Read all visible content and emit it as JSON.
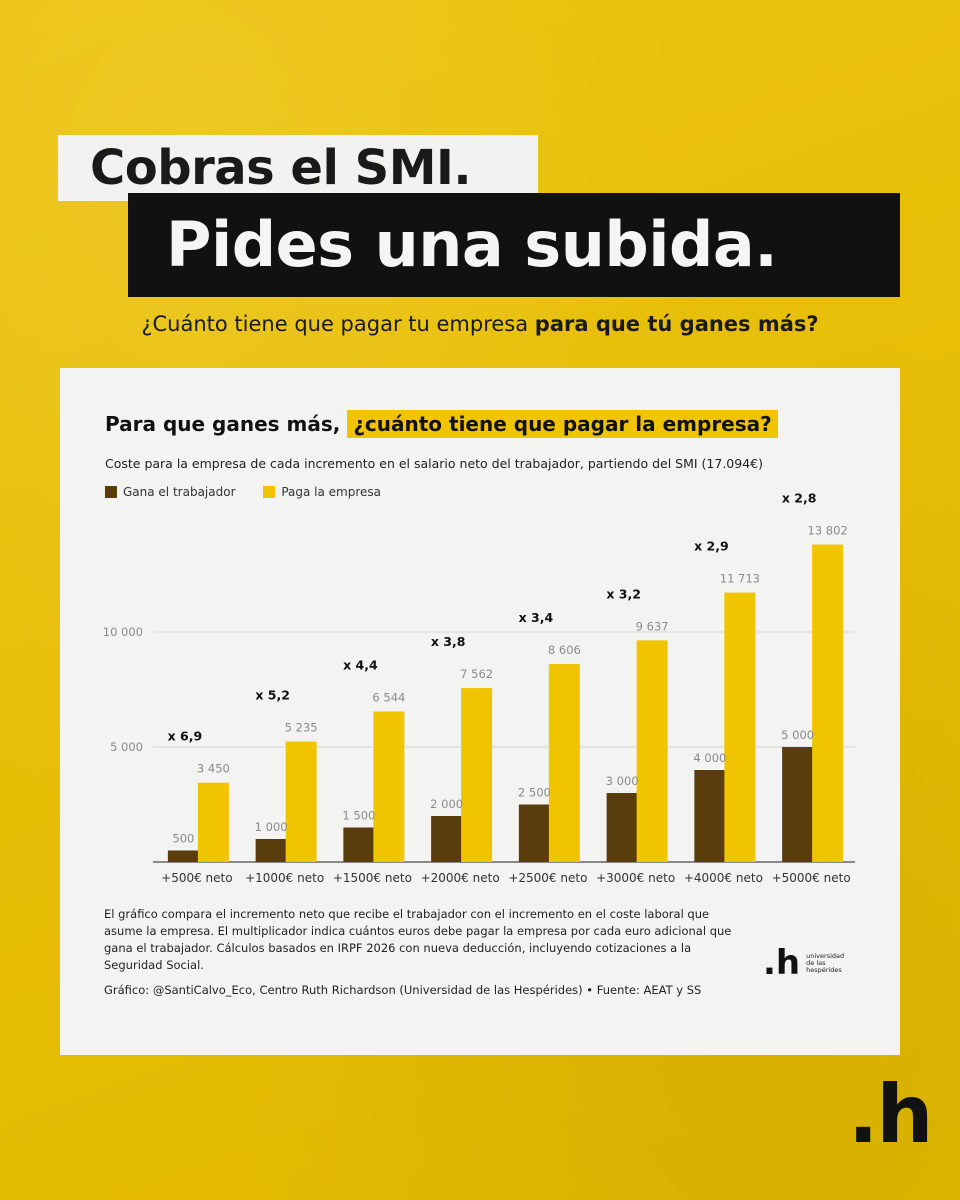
{
  "headline": {
    "line1": "Cobras el SMI.",
    "line2": "Pides una subida."
  },
  "subtitle": {
    "normal": "¿Cuánto tiene que pagar tu empresa ",
    "bold": "para que tú ganes más?"
  },
  "card": {
    "title_plain": "Para que ganes más, ",
    "title_highlight": "¿cuánto tiene que pagar la empresa?",
    "description": "Coste para la empresa de cada incremento en el salario neto del trabajador, partiendo del SMI (17.094€)",
    "note": "El gráfico compara el incremento neto que recibe el trabajador con el incremento en el coste laboral que asume la empresa. El multiplicador indica cuántos euros debe pagar la empresa por cada euro adicional que gana el trabajador. Cálculos basados en IRPF 2026 con nueva deducción, incluyendo cotizaciones a la Seguridad Social.",
    "credit": "Gráfico: @SantiCalvo_Eco, Centro Ruth Richardson (Universidad de las Hespérides) • Fuente: AEAT y SS",
    "logo_mark": ".h",
    "logo_name": [
      "universidad",
      "de las",
      "hespérides"
    ]
  },
  "brand_logo": ".h",
  "colors": {
    "background": "#ebc000",
    "worker": "#5a3d0c",
    "company": "#f1c400"
  },
  "chart_data": {
    "type": "bar",
    "categories": [
      "+500€ neto",
      "+1000€ neto",
      "+1500€ neto",
      "+2000€ neto",
      "+2500€ neto",
      "+3000€ neto",
      "+4000€ neto",
      "+5000€ neto"
    ],
    "series": [
      {
        "name": "Gana el trabajador",
        "values": [
          500,
          1000,
          1500,
          2000,
          2500,
          3000,
          4000,
          5000
        ],
        "labels": [
          "500",
          "1 000",
          "1 500",
          "2 000",
          "2 500",
          "3 000",
          "4 000",
          "5 000"
        ]
      },
      {
        "name": "Paga la empresa",
        "values": [
          3450,
          5235,
          6544,
          7562,
          8606,
          9637,
          11713,
          13802
        ],
        "labels": [
          "3 450",
          "5 235",
          "6 544",
          "7 562",
          "8 606",
          "9 637",
          "11 713",
          "13 802"
        ]
      }
    ],
    "multipliers": [
      "x 6,9",
      "x 5,2",
      "x 4,4",
      "x 3,8",
      "x 3,4",
      "x 3,2",
      "x 2,9",
      "x 2,8"
    ],
    "yticks": [
      5000,
      10000
    ],
    "ytick_labels": [
      "5 000",
      "10 000"
    ],
    "ylim": [
      0,
      14000
    ],
    "grid": true,
    "legend": "top-left",
    "title": "Para que ganes más, ¿cuánto tiene que pagar la empresa?",
    "xlabel": "",
    "ylabel": ""
  }
}
